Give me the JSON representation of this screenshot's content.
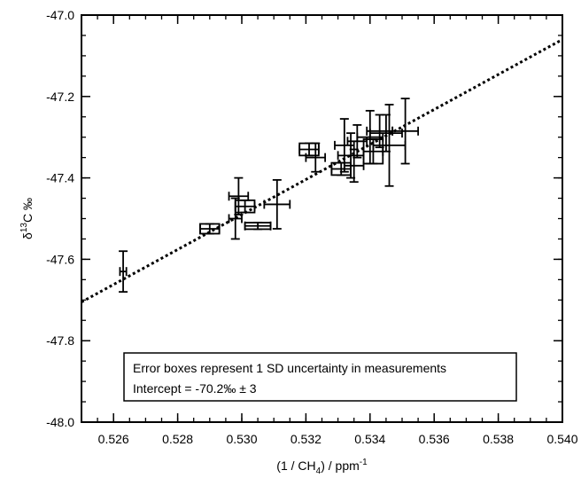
{
  "chart_data": {
    "type": "scatter",
    "xlabel": {
      "pre": "(1 / CH",
      "sub": "4",
      "mid": ") / ppm",
      "sup": "-1"
    },
    "ylabel": {
      "pre": "δ",
      "sup": "13",
      "post": "C ‰"
    },
    "xlim": [
      0.525,
      0.54
    ],
    "ylim": [
      -48.0,
      -47.0
    ],
    "x_ticks": [
      "0.526",
      "0.528",
      "0.530",
      "0.532",
      "0.534",
      "0.536",
      "0.538",
      "0.540"
    ],
    "y_ticks": [
      "-48.0",
      "-47.8",
      "-47.6",
      "-47.4",
      "-47.2",
      "-47.0"
    ],
    "grid": false,
    "legend_lines": [
      "Error boxes represent 1 SD uncertainty in measurements",
      "Intercept = -70.2‰ ± 3"
    ],
    "fit_line": {
      "style": "dotted",
      "x": [
        0.525,
        0.54
      ],
      "y": [
        -47.705,
        -47.06
      ]
    },
    "points": [
      {
        "x": 0.5263,
        "y": -47.63,
        "dx": 0.0001,
        "dy": 0.05
      },
      {
        "x": 0.529,
        "y": -47.525,
        "dx": 0.0003,
        "dy": 0.012
      },
      {
        "x": 0.5298,
        "y": -47.5,
        "dx": 0.0002,
        "dy": 0.05
      },
      {
        "x": 0.5299,
        "y": -47.445,
        "dx": 0.0003,
        "dy": 0.045
      },
      {
        "x": 0.5301,
        "y": -47.47,
        "dx": 0.0003,
        "dy": 0.015
      },
      {
        "x": 0.5305,
        "y": -47.518,
        "dx": 0.0004,
        "dy": 0.008
      },
      {
        "x": 0.5311,
        "y": -47.465,
        "dx": 0.0004,
        "dy": 0.06
      },
      {
        "x": 0.5321,
        "y": -47.33,
        "dx": 0.0003,
        "dy": 0.015
      },
      {
        "x": 0.5323,
        "y": -47.35,
        "dx": 0.0003,
        "dy": 0.035
      },
      {
        "x": 0.5331,
        "y": -47.378,
        "dx": 0.0003,
        "dy": 0.015
      },
      {
        "x": 0.5332,
        "y": -47.32,
        "dx": 0.0003,
        "dy": 0.065
      },
      {
        "x": 0.5334,
        "y": -47.345,
        "dx": 0.0004,
        "dy": 0.055
      },
      {
        "x": 0.5335,
        "y": -47.37,
        "dx": 0.0003,
        "dy": 0.04
      },
      {
        "x": 0.5336,
        "y": -47.31,
        "dx": 0.0003,
        "dy": 0.04
      },
      {
        "x": 0.534,
        "y": -47.3,
        "dx": 0.0004,
        "dy": 0.065
      },
      {
        "x": 0.5341,
        "y": -47.335,
        "dx": 0.0003,
        "dy": 0.03
      },
      {
        "x": 0.5343,
        "y": -47.285,
        "dx": 0.0004,
        "dy": 0.04
      },
      {
        "x": 0.5345,
        "y": -47.29,
        "dx": 0.0005,
        "dy": 0.045
      },
      {
        "x": 0.5346,
        "y": -47.32,
        "dx": 0.0005,
        "dy": 0.1
      },
      {
        "x": 0.5351,
        "y": -47.285,
        "dx": 0.0004,
        "dy": 0.08
      }
    ]
  }
}
